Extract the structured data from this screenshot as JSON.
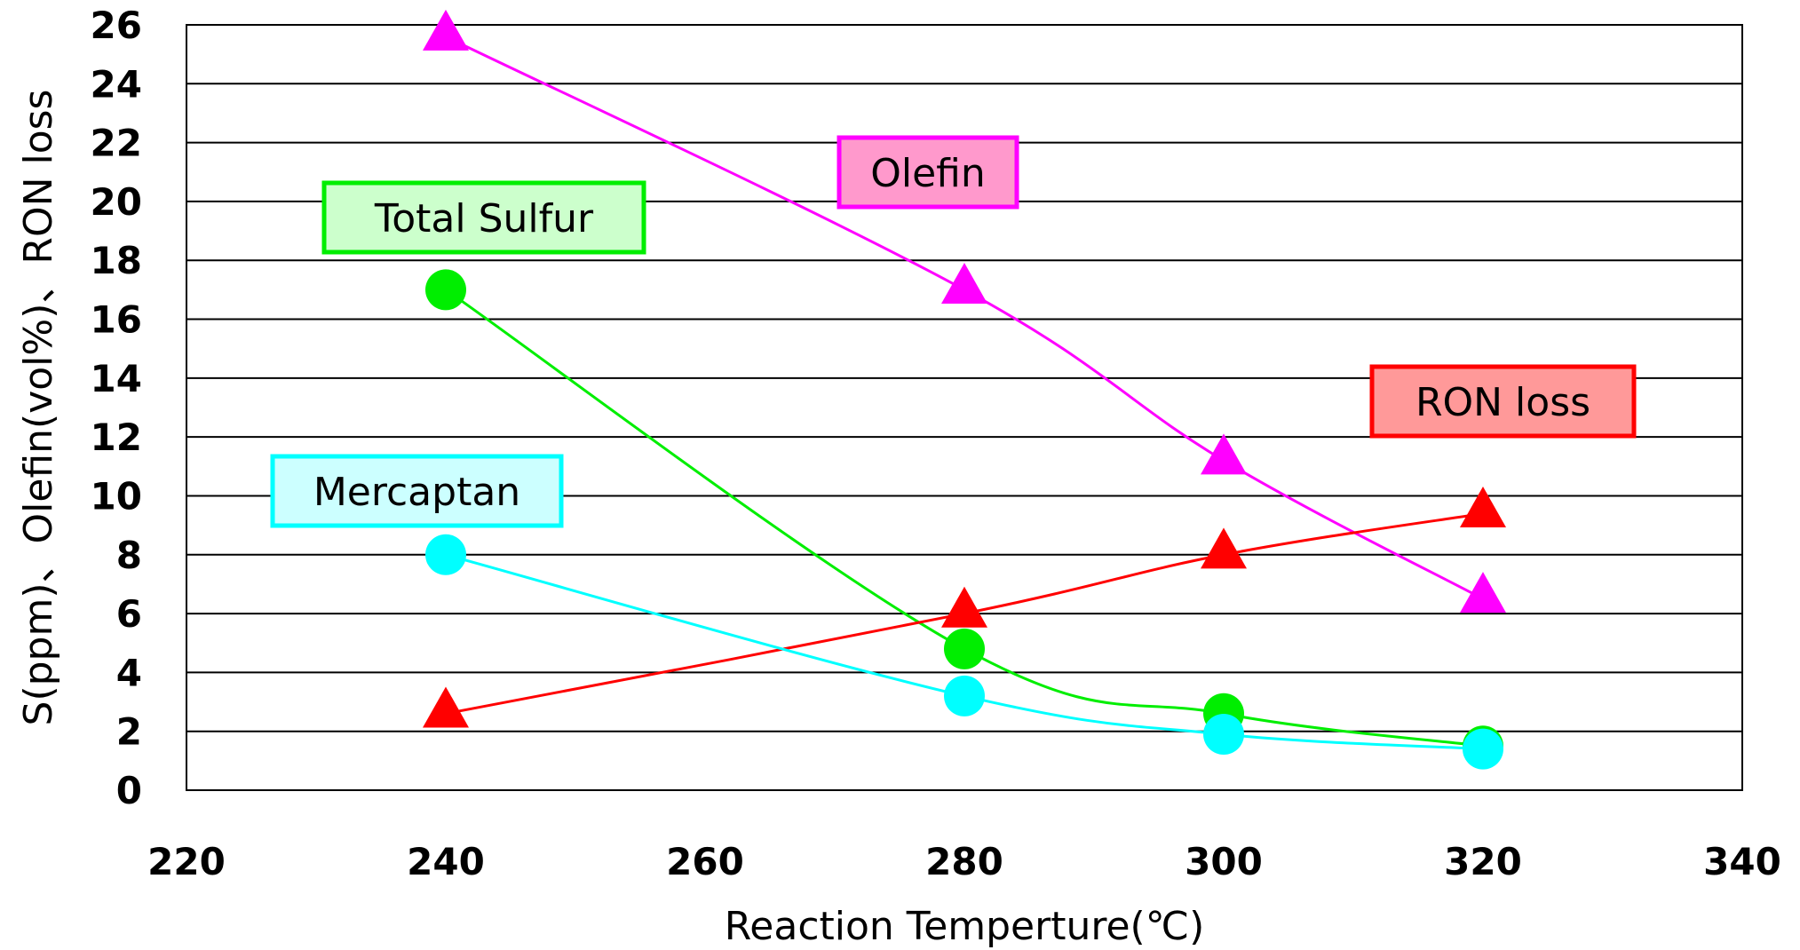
{
  "chart_data": {
    "type": "line",
    "xlabel": "Reaction Temperture(℃)",
    "ylabel": "S(ppm)、Olefin(vol%)、RON loss",
    "xlim": [
      220,
      340
    ],
    "ylim": [
      0,
      26
    ],
    "xticks": [
      220,
      240,
      260,
      280,
      300,
      320,
      340
    ],
    "yticks": [
      0,
      2,
      4,
      6,
      8,
      10,
      12,
      14,
      16,
      18,
      20,
      22,
      24,
      26
    ],
    "grid": "horizontal",
    "x": [
      240,
      280,
      300,
      320
    ],
    "series": [
      {
        "name": "Olefin",
        "values": [
          25.6,
          17.0,
          11.2,
          6.5
        ],
        "color": "#ff00ff",
        "marker": "triangle",
        "label_fill": "#ff99cc",
        "label_border": "#ff00ff"
      },
      {
        "name": "Total Sulfur",
        "values": [
          17.0,
          4.8,
          2.6,
          1.5
        ],
        "color": "#00ee00",
        "marker": "circle",
        "label_fill": "#ccffcc",
        "label_border": "#00ee00"
      },
      {
        "name": "RON loss",
        "values": [
          2.6,
          6.0,
          8.0,
          9.4
        ],
        "color": "#ff0000",
        "marker": "triangle",
        "label_fill": "#ff9999",
        "label_border": "#ff0000"
      },
      {
        "name": "Mercaptan",
        "values": [
          8.0,
          3.2,
          1.9,
          1.4
        ],
        "color": "#00ffff",
        "marker": "circle",
        "label_fill": "#ccffff",
        "label_border": "#00ffff"
      }
    ]
  }
}
